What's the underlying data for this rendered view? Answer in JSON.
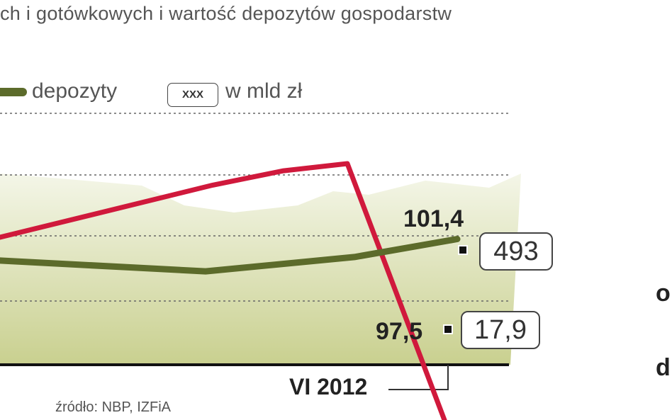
{
  "header": {
    "title": "ch i gotówkowych i wartość depozytów gospodarstw"
  },
  "legend": {
    "series_label": "depozyty",
    "box_sample": "XXX",
    "unit": "w mld zł"
  },
  "colors": {
    "red_series": "#d0193c",
    "deposits_series": "#5c6b2b",
    "area_fill_top": "#f4f6e8",
    "area_fill_bottom": "#c9d08f"
  },
  "chart_data": {
    "type": "line",
    "ylim": [
      60,
      130
    ],
    "series": [
      {
        "name": "",
        "color": "#d0193c",
        "points": [
          [
            0,
            95.5
          ],
          [
            300,
            110
          ],
          [
            400,
            114
          ],
          [
            490,
            116
          ],
          [
            632,
            42
          ]
        ],
        "end_value": "17,9",
        "end_marker_label": "97,5"
      },
      {
        "name": "depozyty",
        "color": "#5c6b2b",
        "points": [
          [
            0,
            89
          ],
          [
            290,
            86
          ],
          [
            500,
            90
          ],
          [
            645,
            95
          ]
        ],
        "end_value": "493",
        "end_marker_label": "101,4"
      }
    ],
    "x_category": "VI 2012"
  },
  "footer": {
    "source": "źródło: NBP, IZFiA"
  },
  "edge_text": [
    "o",
    "d"
  ]
}
